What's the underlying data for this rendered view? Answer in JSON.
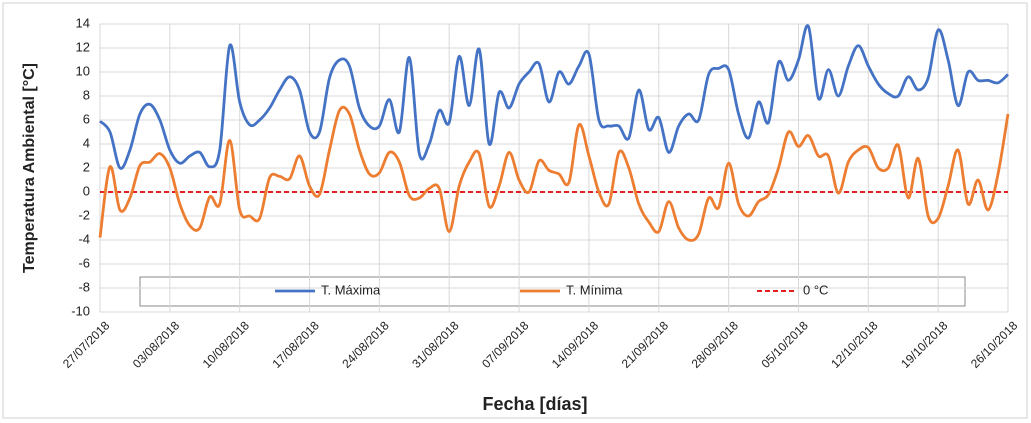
{
  "chart_data": {
    "type": "line",
    "y_label": "Temperatura Ambiental [°C]",
    "x_label": "Fecha [días]",
    "x": [
      "27/07/2018",
      "28/07/2018",
      "29/07/2018",
      "30/07/2018",
      "31/07/2018",
      "01/08/2018",
      "02/08/2018",
      "03/08/2018",
      "04/08/2018",
      "05/08/2018",
      "06/08/2018",
      "07/08/2018",
      "08/08/2018",
      "09/08/2018",
      "10/08/2018",
      "11/08/2018",
      "12/08/2018",
      "13/08/2018",
      "14/08/2018",
      "15/08/2018",
      "16/08/2018",
      "17/08/2018",
      "18/08/2018",
      "19/08/2018",
      "20/08/2018",
      "21/08/2018",
      "22/08/2018",
      "23/08/2018",
      "24/08/2018",
      "25/08/2018",
      "26/08/2018",
      "27/08/2018",
      "28/08/2018",
      "29/08/2018",
      "30/08/2018",
      "31/08/2018",
      "01/09/2018",
      "02/09/2018",
      "03/09/2018",
      "04/09/2018",
      "05/09/2018",
      "06/09/2018",
      "07/09/2018",
      "08/09/2018",
      "09/09/2018",
      "10/09/2018",
      "11/09/2018",
      "12/09/2018",
      "13/09/2018",
      "14/09/2018",
      "15/09/2018",
      "16/09/2018",
      "17/09/2018",
      "18/09/2018",
      "19/09/2018",
      "20/09/2018",
      "21/09/2018",
      "22/09/2018",
      "23/09/2018",
      "24/09/2018",
      "25/09/2018",
      "26/09/2018",
      "27/09/2018",
      "28/09/2018",
      "29/09/2018",
      "30/09/2018",
      "01/10/2018",
      "02/10/2018",
      "03/10/2018",
      "04/10/2018",
      "05/10/2018",
      "06/10/2018",
      "07/10/2018",
      "08/10/2018",
      "09/10/2018",
      "10/10/2018",
      "11/10/2018",
      "12/10/2018",
      "13/10/2018",
      "14/10/2018",
      "15/10/2018",
      "16/10/2018",
      "17/10/2018",
      "18/10/2018",
      "19/10/2018",
      "20/10/2018",
      "21/10/2018",
      "22/10/2018",
      "23/10/2018",
      "24/10/2018",
      "25/10/2018",
      "26/10/2018"
    ],
    "series": [
      {
        "name": "T. Máxima",
        "color": "#4472c4",
        "values": [
          5.9,
          5.0,
          2.0,
          3.5,
          6.5,
          7.3,
          6.0,
          3.5,
          2.4,
          3.0,
          3.3,
          2.1,
          3.5,
          12.2,
          7.5,
          5.6,
          6.0,
          7.0,
          8.5,
          9.6,
          8.5,
          5.0,
          5.0,
          9.5,
          11.0,
          10.5,
          7.0,
          5.5,
          5.5,
          7.7,
          5.0,
          11.2,
          3.2,
          4.0,
          6.8,
          5.8,
          11.3,
          7.2,
          11.9,
          4.0,
          8.3,
          7.0,
          9.0,
          10.0,
          10.7,
          7.5,
          10.0,
          9.0,
          10.5,
          11.5,
          6.0,
          5.5,
          5.5,
          4.5,
          8.5,
          5.2,
          6.2,
          3.3,
          5.5,
          6.5,
          6.0,
          9.8,
          10.3,
          10.2,
          6.5,
          4.5,
          7.5,
          5.8,
          10.8,
          9.3,
          11.0,
          13.8,
          7.8,
          10.2,
          8.0,
          10.5,
          12.2,
          10.5,
          9.0,
          8.2,
          8.0,
          9.6,
          8.5,
          9.5,
          13.5,
          11.0,
          7.2,
          10.0,
          9.3,
          9.3,
          9.1,
          9.8
        ]
      },
      {
        "name": "T. Mínima",
        "color": "#ed7d31",
        "values": [
          -3.8,
          2.1,
          -1.5,
          -0.5,
          2.2,
          2.5,
          3.2,
          2.0,
          -1.0,
          -2.8,
          -3.0,
          -0.4,
          -1.0,
          4.3,
          -1.5,
          -2.0,
          -2.2,
          1.2,
          1.3,
          1.1,
          3.0,
          0.5,
          -0.2,
          3.5,
          6.8,
          6.5,
          3.5,
          1.5,
          1.6,
          3.3,
          2.5,
          -0.3,
          -0.5,
          0.3,
          0.3,
          -3.3,
          0.5,
          2.5,
          3.2,
          -1.2,
          0.5,
          3.3,
          1.0,
          0.0,
          2.6,
          1.8,
          1.5,
          0.8,
          5.6,
          3.0,
          0.0,
          -1.0,
          3.3,
          2.0,
          -1.0,
          -2.5,
          -3.3,
          -0.8,
          -3.0,
          -4.0,
          -3.5,
          -0.5,
          -1.3,
          2.4,
          -1.0,
          -2.0,
          -0.8,
          -0.2,
          2.0,
          5.0,
          3.8,
          4.7,
          3.0,
          3.0,
          -0.1,
          2.5,
          3.5,
          3.7,
          2.0,
          2.0,
          3.9,
          -0.5,
          2.8,
          -2.0,
          -2.2,
          0.5,
          3.5,
          -1.0,
          1.0,
          -1.5,
          1.5,
          6.5
        ]
      }
    ],
    "reference_line": {
      "name": "0 °C",
      "value": 0,
      "color": "#e00000",
      "dashed": true
    },
    "xticks": [
      "27/07/2018",
      "03/08/2018",
      "10/08/2018",
      "17/08/2018",
      "24/08/2018",
      "31/08/2018",
      "07/09/2018",
      "14/09/2018",
      "21/09/2018",
      "28/09/2018",
      "05/10/2018",
      "12/10/2018",
      "19/10/2018",
      "26/10/2018"
    ],
    "ylim": [
      -10,
      14
    ],
    "yticks": [
      -10,
      -8,
      -6,
      -4,
      -2,
      0,
      2,
      4,
      6,
      8,
      10,
      12,
      14
    ],
    "grid": true,
    "legend": "bottom"
  }
}
